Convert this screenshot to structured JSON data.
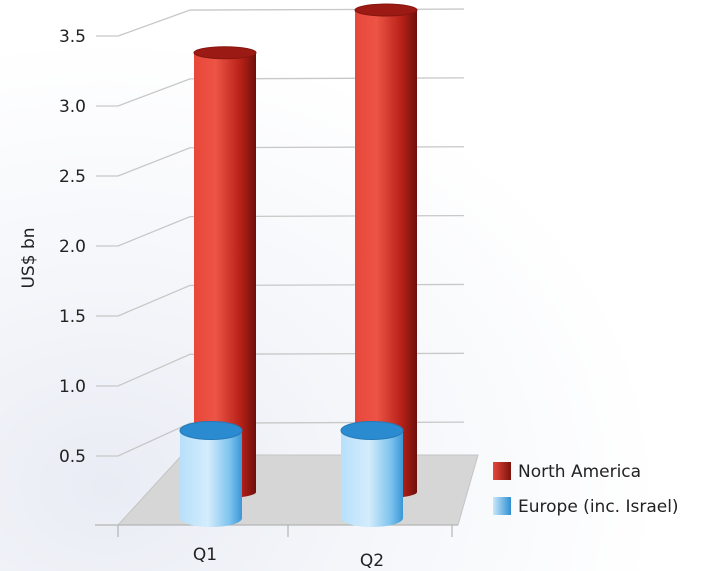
{
  "chart_data": {
    "type": "bar",
    "style": "3d-cylinder",
    "title": "",
    "xlabel": "",
    "ylabel": "US$ bn",
    "ylim": [
      0,
      3.5
    ],
    "yticks": [
      0.5,
      1.0,
      1.5,
      2.0,
      2.5,
      3.0,
      3.5
    ],
    "ytick_labels": [
      "0.5",
      "1.0",
      "1.5",
      "2.0",
      "2.5",
      "3.0",
      "3.5"
    ],
    "categories": [
      "Q1",
      "Q2"
    ],
    "series": [
      {
        "name": "North America",
        "values": [
          3.19,
          3.5
        ],
        "color": "#c62a22"
      },
      {
        "name": "Europe (inc. Israel)",
        "values": [
          0.5,
          0.5
        ],
        "color": "#4ba6e0"
      }
    ],
    "grid": true,
    "legend": "bottom-right"
  }
}
